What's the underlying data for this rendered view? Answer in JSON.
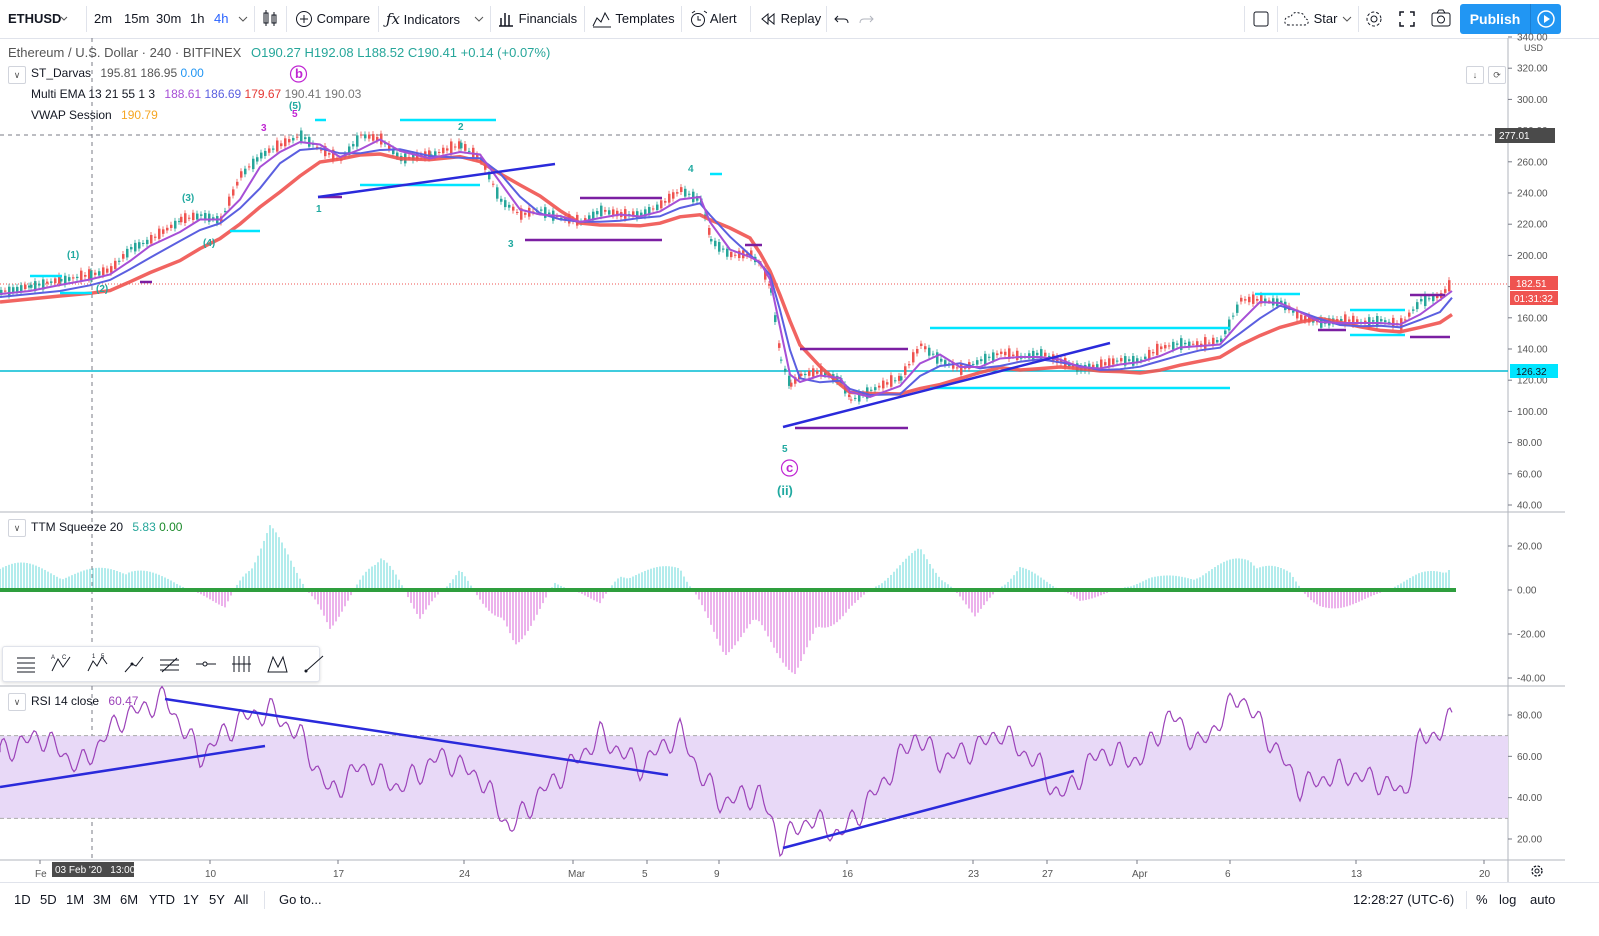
{
  "toolbar": {
    "symbol": "ETHUSD",
    "intervals": [
      "2m",
      "15m",
      "30m",
      "1h",
      "4h"
    ],
    "active_interval": "4h",
    "compare": "Compare",
    "indicators": "Indicators",
    "financials": "Financials",
    "templates": "Templates",
    "alert": "Alert",
    "replay": "Replay",
    "star": "Star",
    "publish": "Publish"
  },
  "main_legend": {
    "title": "Ethereum / U.S. Dollar · 240 · BITFINEX",
    "open": "O190.27",
    "high": "H192.08",
    "low": "L188.52",
    "close": "C190.41",
    "change": "+0.14 (+0.07%)"
  },
  "indicators": {
    "darvas": {
      "name": "ST_Darvas",
      "v1": "195.81",
      "v2": "186.95",
      "v3": "0.00"
    },
    "ema": {
      "name": "Multi EMA 13 21 55 1 3",
      "v1": "188.61",
      "v2": "186.69",
      "v3": "179.67",
      "v4": "190.41",
      "v5": "190.03"
    },
    "vwap": {
      "name": "VWAP Session",
      "v1": "190.79"
    },
    "ttm": {
      "name": "TTM Squeeze 20",
      "v1": "5.83",
      "v2": "0.00"
    },
    "rsi": {
      "name": "RSI 14 close",
      "v1": "60.47"
    }
  },
  "price_axis": {
    "currency": "USD",
    "ticks": [
      "340.00",
      "320.00",
      "300.00",
      "280.00",
      "260.00",
      "240.00",
      "220.00",
      "200.00",
      "180.00",
      "160.00",
      "140.00",
      "120.00",
      "100.00",
      "80.00",
      "60.00",
      "40.00"
    ],
    "label_277": "277.01",
    "label_last": "182.51",
    "label_countdown": "01:31:32",
    "label_hline": "126.32"
  },
  "ttm_axis": {
    "ticks": [
      "20.00",
      "0.00",
      "-20.00",
      "-40.00"
    ]
  },
  "rsi_axis": {
    "ticks": [
      "80.00",
      "60.00",
      "40.00",
      "20.00"
    ]
  },
  "time_axis": {
    "ticks": [
      "Fe",
      "10",
      "17",
      "24",
      "Mar",
      "5",
      "9",
      "16",
      "23",
      "27",
      "Apr",
      "6",
      "13",
      "20"
    ],
    "crosshair_label": "03 Feb '20   13:00"
  },
  "wave_labels": {
    "b": "b",
    "c": "c",
    "ii": "(ii)",
    "w1": "(1)",
    "w2": "(2)",
    "w3": "(3)",
    "w4": "(4)",
    "w5": "(5)",
    "n1": "1",
    "n2": "2",
    "n3": "3",
    "n4": "4",
    "n5": "5",
    "n3a": "3",
    "n5a": "5"
  },
  "bottom": {
    "ranges": [
      "1D",
      "5D",
      "1M",
      "3M",
      "6M",
      "YTD",
      "1Y",
      "5Y",
      "All"
    ],
    "goto": "Go to...",
    "clock": "12:28:27 (UTC-6)",
    "percent": "%",
    "log": "log",
    "auto": "auto"
  },
  "colors": {
    "up": "#26a69a",
    "down": "#ef5350",
    "ema_slow": "#f05350",
    "ema_mid": "#5b5fe0",
    "ema_fast": "#a64fd6",
    "darvas_box": "#00e5ff",
    "trendline": "#2a2adb",
    "rsi_band": "#e8d9f7",
    "rsi_line": "#9c43b9",
    "accent": "#2196f3"
  }
}
